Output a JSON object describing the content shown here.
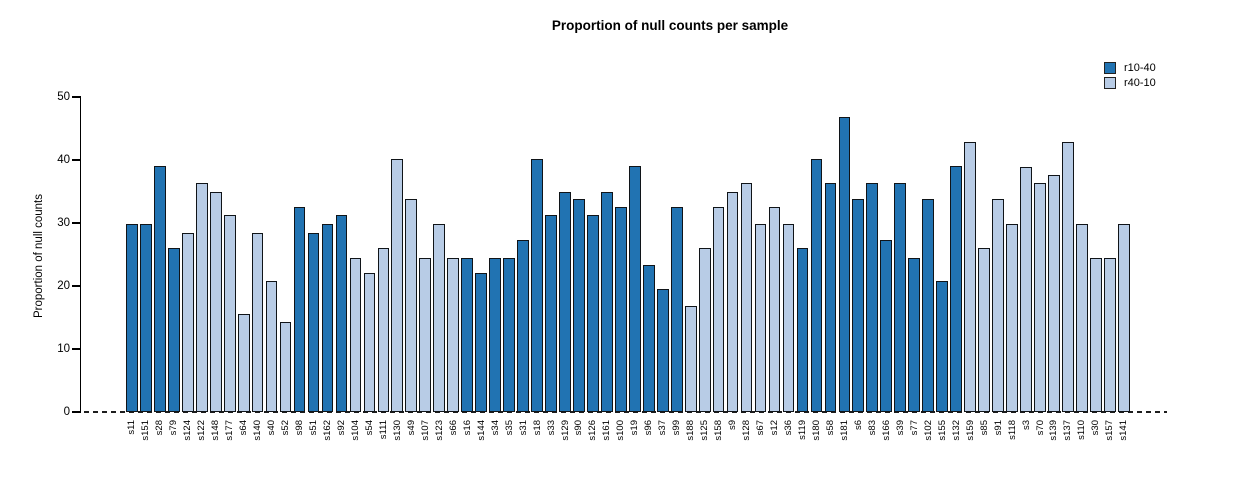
{
  "title": "Proportion of null counts per sample",
  "legend": {
    "items": [
      {
        "label": "r10-40",
        "color": "#2173b2"
      },
      {
        "label": "r40-10",
        "color": "#b8cce6"
      }
    ]
  },
  "y_axis": {
    "label": "Proportion of null counts",
    "ticks": [
      0,
      10,
      20,
      30,
      40,
      50
    ]
  },
  "chart_data": {
    "type": "bar",
    "title": "Proportion of null counts per sample",
    "xlabel": "",
    "ylabel": "Proportion of null counts",
    "ylim": [
      0,
      50
    ],
    "grid": false,
    "legend_position": "top-right",
    "baseline_style": "dashed-zero-line",
    "series": [
      {
        "name": "r10-40",
        "color": "#2173b2"
      },
      {
        "name": "r40-10",
        "color": "#b8cce6"
      }
    ],
    "bars": [
      {
        "sample": "s11",
        "value": 29.8,
        "series": "r10-40"
      },
      {
        "sample": "s151",
        "value": 29.8,
        "series": "r10-40"
      },
      {
        "sample": "s28",
        "value": 39.0,
        "series": "r10-40"
      },
      {
        "sample": "s79",
        "value": 26.0,
        "series": "r10-40"
      },
      {
        "sample": "s124",
        "value": 28.5,
        "series": "r40-10"
      },
      {
        "sample": "s122",
        "value": 36.4,
        "series": "r40-10"
      },
      {
        "sample": "s148",
        "value": 35.0,
        "series": "r40-10"
      },
      {
        "sample": "s177",
        "value": 31.2,
        "series": "r40-10"
      },
      {
        "sample": "s64",
        "value": 15.6,
        "series": "r40-10"
      },
      {
        "sample": "s140",
        "value": 28.5,
        "series": "r40-10"
      },
      {
        "sample": "s40",
        "value": 20.8,
        "series": "r40-10"
      },
      {
        "sample": "s52",
        "value": 14.3,
        "series": "r40-10"
      },
      {
        "sample": "s98",
        "value": 32.5,
        "series": "r10-40"
      },
      {
        "sample": "s51",
        "value": 28.5,
        "series": "r10-40"
      },
      {
        "sample": "s162",
        "value": 29.8,
        "series": "r10-40"
      },
      {
        "sample": "s92",
        "value": 31.2,
        "series": "r10-40"
      },
      {
        "sample": "s104",
        "value": 24.5,
        "series": "r40-10"
      },
      {
        "sample": "s54",
        "value": 22.0,
        "series": "r40-10"
      },
      {
        "sample": "s111",
        "value": 26.0,
        "series": "r40-10"
      },
      {
        "sample": "s130",
        "value": 40.2,
        "series": "r40-10"
      },
      {
        "sample": "s49",
        "value": 33.8,
        "series": "r40-10"
      },
      {
        "sample": "s107",
        "value": 24.5,
        "series": "r40-10"
      },
      {
        "sample": "s123",
        "value": 29.8,
        "series": "r40-10"
      },
      {
        "sample": "s66",
        "value": 24.5,
        "series": "r40-10"
      },
      {
        "sample": "s16",
        "value": 24.5,
        "series": "r10-40"
      },
      {
        "sample": "s144",
        "value": 22.0,
        "series": "r10-40"
      },
      {
        "sample": "s34",
        "value": 24.5,
        "series": "r10-40"
      },
      {
        "sample": "s35",
        "value": 24.5,
        "series": "r10-40"
      },
      {
        "sample": "s31",
        "value": 27.3,
        "series": "r10-40"
      },
      {
        "sample": "s18",
        "value": 40.2,
        "series": "r10-40"
      },
      {
        "sample": "s33",
        "value": 31.2,
        "series": "r10-40"
      },
      {
        "sample": "s129",
        "value": 35.0,
        "series": "r10-40"
      },
      {
        "sample": "s90",
        "value": 33.8,
        "series": "r10-40"
      },
      {
        "sample": "s126",
        "value": 31.2,
        "series": "r10-40"
      },
      {
        "sample": "s161",
        "value": 35.0,
        "series": "r10-40"
      },
      {
        "sample": "s100",
        "value": 32.5,
        "series": "r10-40"
      },
      {
        "sample": "s19",
        "value": 39.0,
        "series": "r10-40"
      },
      {
        "sample": "s96",
        "value": 23.3,
        "series": "r10-40"
      },
      {
        "sample": "s37",
        "value": 19.6,
        "series": "r10-40"
      },
      {
        "sample": "s99",
        "value": 32.5,
        "series": "r10-40"
      },
      {
        "sample": "s188",
        "value": 16.9,
        "series": "r40-10"
      },
      {
        "sample": "s125",
        "value": 26.0,
        "series": "r40-10"
      },
      {
        "sample": "s158",
        "value": 32.5,
        "series": "r40-10"
      },
      {
        "sample": "s9",
        "value": 35.0,
        "series": "r40-10"
      },
      {
        "sample": "s128",
        "value": 36.4,
        "series": "r40-10"
      },
      {
        "sample": "s67",
        "value": 29.8,
        "series": "r40-10"
      },
      {
        "sample": "s12",
        "value": 32.5,
        "series": "r40-10"
      },
      {
        "sample": "s36",
        "value": 29.8,
        "series": "r40-10"
      },
      {
        "sample": "s119",
        "value": 26.0,
        "series": "r10-40"
      },
      {
        "sample": "s180",
        "value": 40.2,
        "series": "r10-40"
      },
      {
        "sample": "s58",
        "value": 36.4,
        "series": "r10-40"
      },
      {
        "sample": "s181",
        "value": 46.8,
        "series": "r10-40"
      },
      {
        "sample": "s6",
        "value": 33.8,
        "series": "r10-40"
      },
      {
        "sample": "s83",
        "value": 36.4,
        "series": "r10-40"
      },
      {
        "sample": "s166",
        "value": 27.3,
        "series": "r10-40"
      },
      {
        "sample": "s39",
        "value": 36.4,
        "series": "r10-40"
      },
      {
        "sample": "s77",
        "value": 24.5,
        "series": "r10-40"
      },
      {
        "sample": "s102",
        "value": 33.8,
        "series": "r10-40"
      },
      {
        "sample": "s155",
        "value": 20.8,
        "series": "r10-40"
      },
      {
        "sample": "s132",
        "value": 39.0,
        "series": "r10-40"
      },
      {
        "sample": "s159",
        "value": 42.8,
        "series": "r40-10"
      },
      {
        "sample": "s85",
        "value": 26.0,
        "series": "r40-10"
      },
      {
        "sample": "s91",
        "value": 33.8,
        "series": "r40-10"
      },
      {
        "sample": "s118",
        "value": 29.8,
        "series": "r40-10"
      },
      {
        "sample": "s3",
        "value": 38.9,
        "series": "r40-10"
      },
      {
        "sample": "s70",
        "value": 36.4,
        "series": "r40-10"
      },
      {
        "sample": "s139",
        "value": 37.7,
        "series": "r40-10"
      },
      {
        "sample": "s137",
        "value": 42.8,
        "series": "r40-10"
      },
      {
        "sample": "s110",
        "value": 29.8,
        "series": "r40-10"
      },
      {
        "sample": "s30",
        "value": 24.5,
        "series": "r40-10"
      },
      {
        "sample": "s157",
        "value": 24.5,
        "series": "r40-10"
      },
      {
        "sample": "s141",
        "value": 29.8,
        "series": "r40-10"
      }
    ]
  }
}
